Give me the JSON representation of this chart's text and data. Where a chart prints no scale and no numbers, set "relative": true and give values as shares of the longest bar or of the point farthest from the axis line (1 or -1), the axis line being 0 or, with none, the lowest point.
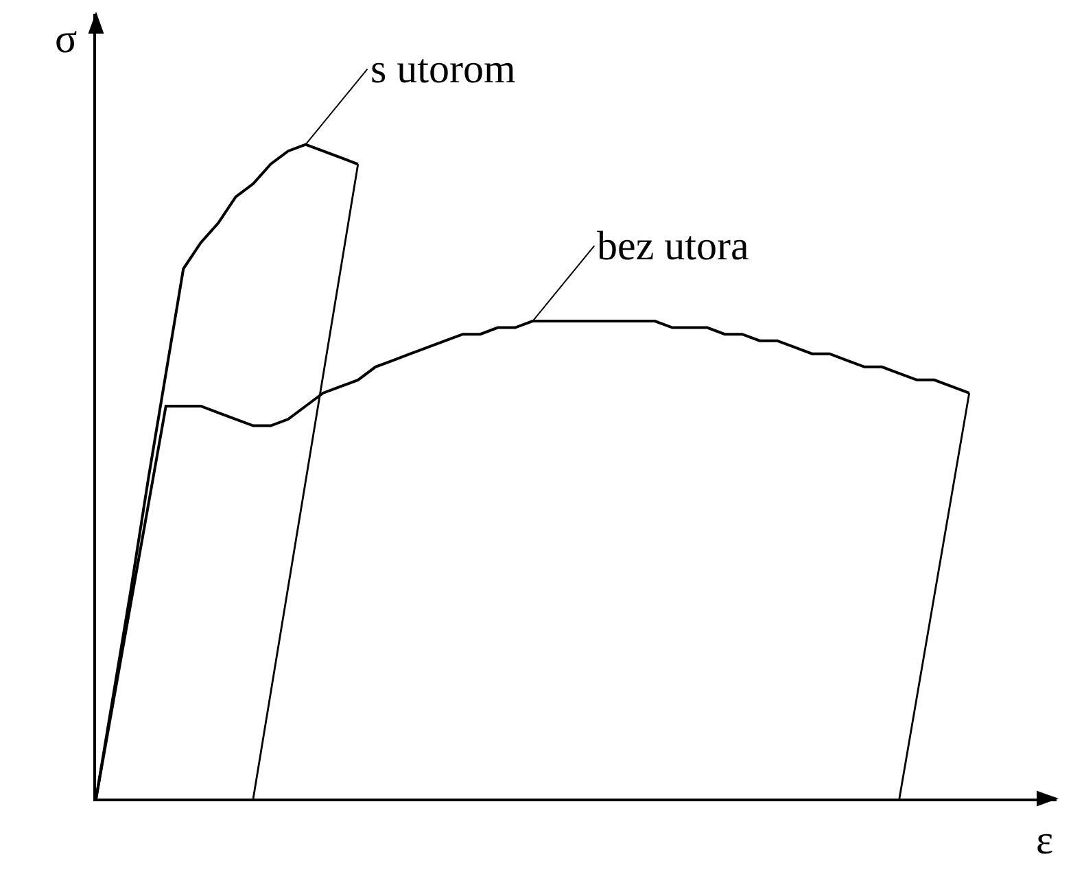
{
  "chart_data": {
    "type": "line",
    "relative": true,
    "xlabel": "ε",
    "ylabel": "σ",
    "legend": false,
    "marker": "none",
    "line_style": "solid",
    "categories": [
      null,
      null,
      null,
      null,
      null,
      null,
      null,
      null,
      null,
      null,
      null,
      null,
      null,
      null,
      null,
      null,
      null,
      null,
      null,
      null,
      null,
      null,
      null,
      null,
      null,
      null,
      null,
      null,
      null,
      null,
      null,
      null,
      null,
      null,
      null,
      null,
      null,
      null,
      null,
      null,
      null,
      null,
      null,
      null,
      null,
      null,
      null,
      null,
      null,
      null,
      null
    ],
    "series": [
      {
        "name": "s utorom",
        "color": "#000000",
        "values": [
          0,
          0.16,
          0.32,
          0.49,
          0.65,
          0.81,
          0.85,
          0.88,
          0.92,
          0.94,
          0.97,
          0.99,
          1,
          0.99,
          0.98,
          0.97,
          null,
          null,
          null,
          null,
          null,
          null,
          null,
          null,
          null,
          null,
          null,
          null,
          null,
          null,
          null,
          null,
          null,
          null,
          null,
          null,
          null,
          null,
          null,
          null,
          null,
          null,
          null,
          null,
          null,
          null,
          null,
          null,
          null,
          null,
          null
        ]
      },
      {
        "color": "#000000",
        "values": [
          null,
          null,
          null,
          null,
          null,
          null,
          null,
          null,
          null,
          0,
          null,
          null,
          null,
          null,
          null,
          0.97,
          null,
          null,
          null,
          null,
          null,
          null,
          null,
          null,
          null,
          null,
          null,
          null,
          null,
          null,
          null,
          null,
          null,
          null,
          null,
          null,
          null,
          null,
          null,
          null,
          null,
          null,
          null,
          null,
          null,
          null,
          null,
          null,
          null,
          null,
          null
        ]
      },
      {
        "name": "bez utora",
        "color": "#000000",
        "values": [
          0,
          0.15,
          0.3,
          0.45,
          0.6,
          0.6,
          0.6,
          0.59,
          0.58,
          0.57,
          0.57,
          0.58,
          0.6,
          0.62,
          0.63,
          0.64,
          0.66,
          0.67,
          0.68,
          0.69,
          0.7,
          0.71,
          0.71,
          0.72,
          0.72,
          0.73,
          0.73,
          0.73,
          0.73,
          0.73,
          0.73,
          0.73,
          0.73,
          0.72,
          0.72,
          0.72,
          0.71,
          0.71,
          0.7,
          0.7,
          0.69,
          0.68,
          0.68,
          0.67,
          0.66,
          0.66,
          0.65,
          0.64,
          0.64,
          0.63,
          0.62
        ]
      },
      {
        "color": "#000000",
        "values": [
          null,
          null,
          null,
          null,
          null,
          null,
          null,
          null,
          null,
          null,
          null,
          null,
          null,
          null,
          null,
          null,
          null,
          null,
          null,
          null,
          null,
          null,
          null,
          null,
          null,
          null,
          null,
          null,
          null,
          null,
          null,
          null,
          null,
          null,
          null,
          null,
          null,
          null,
          null,
          null,
          null,
          null,
          null,
          null,
          null,
          null,
          0,
          null,
          null,
          null,
          0.62
        ]
      }
    ]
  }
}
